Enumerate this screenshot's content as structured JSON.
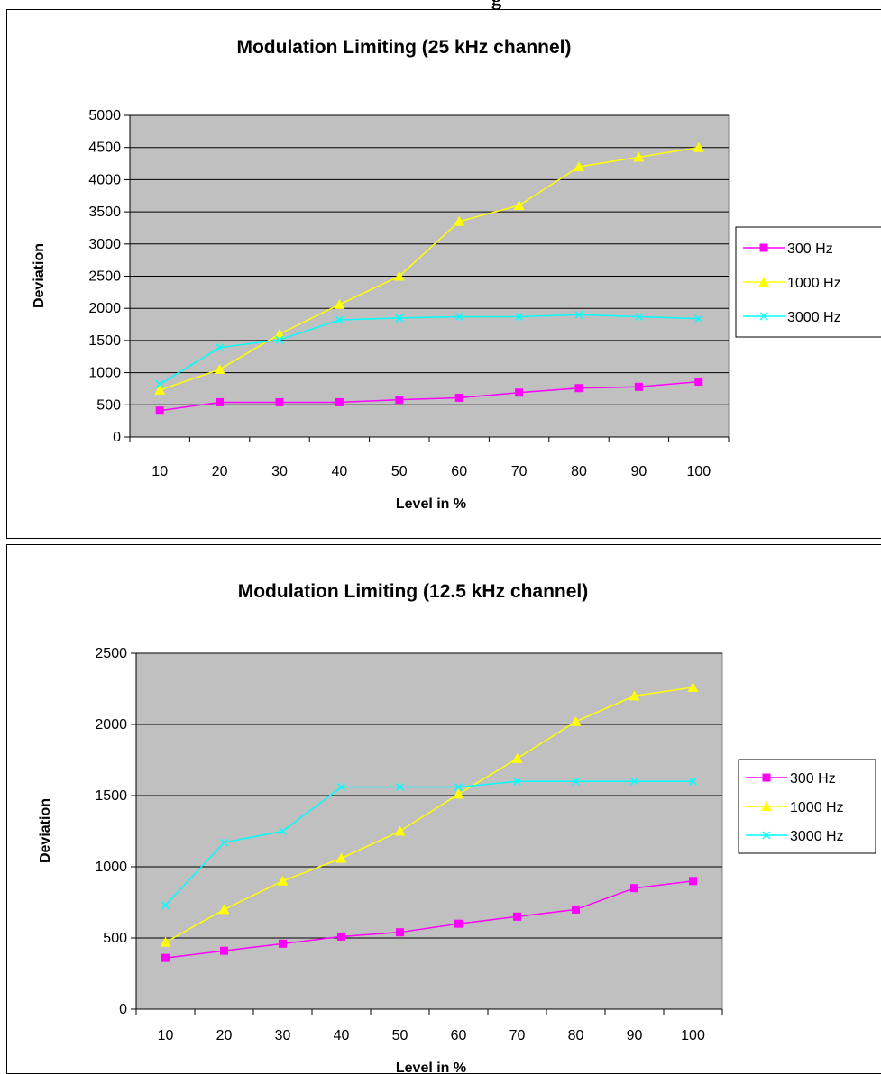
{
  "header": {
    "fragment": "g"
  },
  "colors": {
    "plot_bg": "#c0c0c0",
    "gridline": "#000000",
    "s300": "#ff00ff",
    "s1000": "#ffff00",
    "s3000": "#00ffff"
  },
  "chart_data": [
    {
      "type": "line",
      "title": "Modulation Limiting (25 kHz channel)",
      "xlabel": "Level in %",
      "ylabel": "Deviation",
      "categories": [
        "10",
        "20",
        "30",
        "40",
        "50",
        "60",
        "70",
        "80",
        "90",
        "100"
      ],
      "ylim": [
        0,
        5000
      ],
      "yticks": [
        0,
        500,
        1000,
        1500,
        2000,
        2500,
        3000,
        3500,
        4000,
        4500,
        5000
      ],
      "grid": true,
      "legend": "right",
      "series": [
        {
          "name": "300 Hz",
          "marker": "square",
          "color": "#ff00ff",
          "values": [
            410,
            540,
            540,
            540,
            580,
            610,
            690,
            760,
            780,
            860
          ]
        },
        {
          "name": "1000 Hz",
          "marker": "triangle",
          "color": "#ffff00",
          "values": [
            730,
            1050,
            1600,
            2060,
            2500,
            3350,
            3600,
            4200,
            4350,
            4500
          ]
        },
        {
          "name": "3000 Hz",
          "marker": "x",
          "color": "#00ffff",
          "values": [
            820,
            1390,
            1510,
            1820,
            1850,
            1870,
            1870,
            1900,
            1870,
            1840
          ]
        }
      ]
    },
    {
      "type": "line",
      "title": "Modulation Limiting (12.5 kHz channel)",
      "xlabel": "Level in %",
      "ylabel": "Deviation",
      "categories": [
        "10",
        "20",
        "30",
        "40",
        "50",
        "60",
        "70",
        "80",
        "90",
        "100"
      ],
      "ylim": [
        0,
        2500
      ],
      "yticks": [
        0,
        500,
        1000,
        1500,
        2000,
        2500
      ],
      "grid": true,
      "legend": "right",
      "series": [
        {
          "name": "300 Hz",
          "marker": "square",
          "color": "#ff00ff",
          "values": [
            360,
            410,
            460,
            510,
            540,
            600,
            650,
            700,
            850,
            900
          ]
        },
        {
          "name": "1000 Hz",
          "marker": "triangle",
          "color": "#ffff00",
          "values": [
            470,
            700,
            900,
            1060,
            1250,
            1510,
            1760,
            2020,
            2200,
            2260
          ]
        },
        {
          "name": "3000 Hz",
          "marker": "x",
          "color": "#00ffff",
          "values": [
            730,
            1170,
            1250,
            1560,
            1560,
            1560,
            1600,
            1600,
            1600,
            1600
          ]
        }
      ]
    }
  ]
}
